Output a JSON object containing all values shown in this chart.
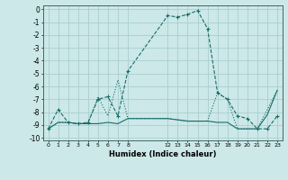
{
  "xlabel": "Humidex (Indice chaleur)",
  "ylabel": "",
  "bg_color": "#cce8e8",
  "grid_color": "#aacece",
  "line_color": "#1a6b6b",
  "xlim": [
    -0.5,
    23.5
  ],
  "ylim": [
    -10.2,
    0.3
  ],
  "xticks": [
    0,
    1,
    2,
    3,
    4,
    5,
    6,
    7,
    8,
    12,
    13,
    14,
    15,
    16,
    17,
    18,
    19,
    20,
    21,
    22,
    23
  ],
  "yticks": [
    0,
    -1,
    -2,
    -3,
    -4,
    -5,
    -6,
    -7,
    -8,
    -9,
    -10
  ],
  "series2_x": [
    0,
    1,
    2,
    3,
    4,
    5,
    6,
    7,
    8,
    12,
    13,
    14,
    15,
    16,
    17,
    18,
    19,
    20,
    21,
    22,
    23
  ],
  "series2_y": [
    -9.3,
    -7.8,
    -8.8,
    -8.9,
    -8.8,
    -7.0,
    -6.8,
    -8.3,
    -4.8,
    -0.5,
    -0.6,
    -0.4,
    -0.1,
    -1.5,
    -6.5,
    -7.0,
    -8.3,
    -8.5,
    -9.3,
    -9.3,
    -8.3
  ],
  "series1_x": [
    0,
    1,
    2,
    3,
    4,
    5,
    6,
    7,
    8,
    12,
    13,
    14,
    15,
    16,
    17,
    18,
    19,
    20,
    21,
    22,
    23
  ],
  "series1_y": [
    -9.3,
    -8.8,
    -8.8,
    -8.9,
    -8.9,
    -8.9,
    -8.8,
    -8.9,
    -8.5,
    -8.5,
    -8.6,
    -8.7,
    -8.7,
    -8.7,
    -8.8,
    -8.8,
    -9.3,
    -9.3,
    -9.3,
    -8.2,
    -6.3
  ],
  "series3_x": [
    0,
    1,
    2,
    3,
    4,
    5,
    6,
    7,
    8,
    12,
    13,
    14,
    15,
    16,
    17,
    18,
    19,
    20,
    21,
    22,
    23
  ],
  "series3_y": [
    -9.3,
    -8.8,
    -8.8,
    -8.9,
    -8.9,
    -6.8,
    -8.3,
    -5.5,
    -8.5,
    -8.5,
    -8.6,
    -8.7,
    -8.7,
    -8.7,
    -6.5,
    -7.0,
    -9.3,
    -9.3,
    -9.3,
    -7.8,
    -6.3
  ]
}
